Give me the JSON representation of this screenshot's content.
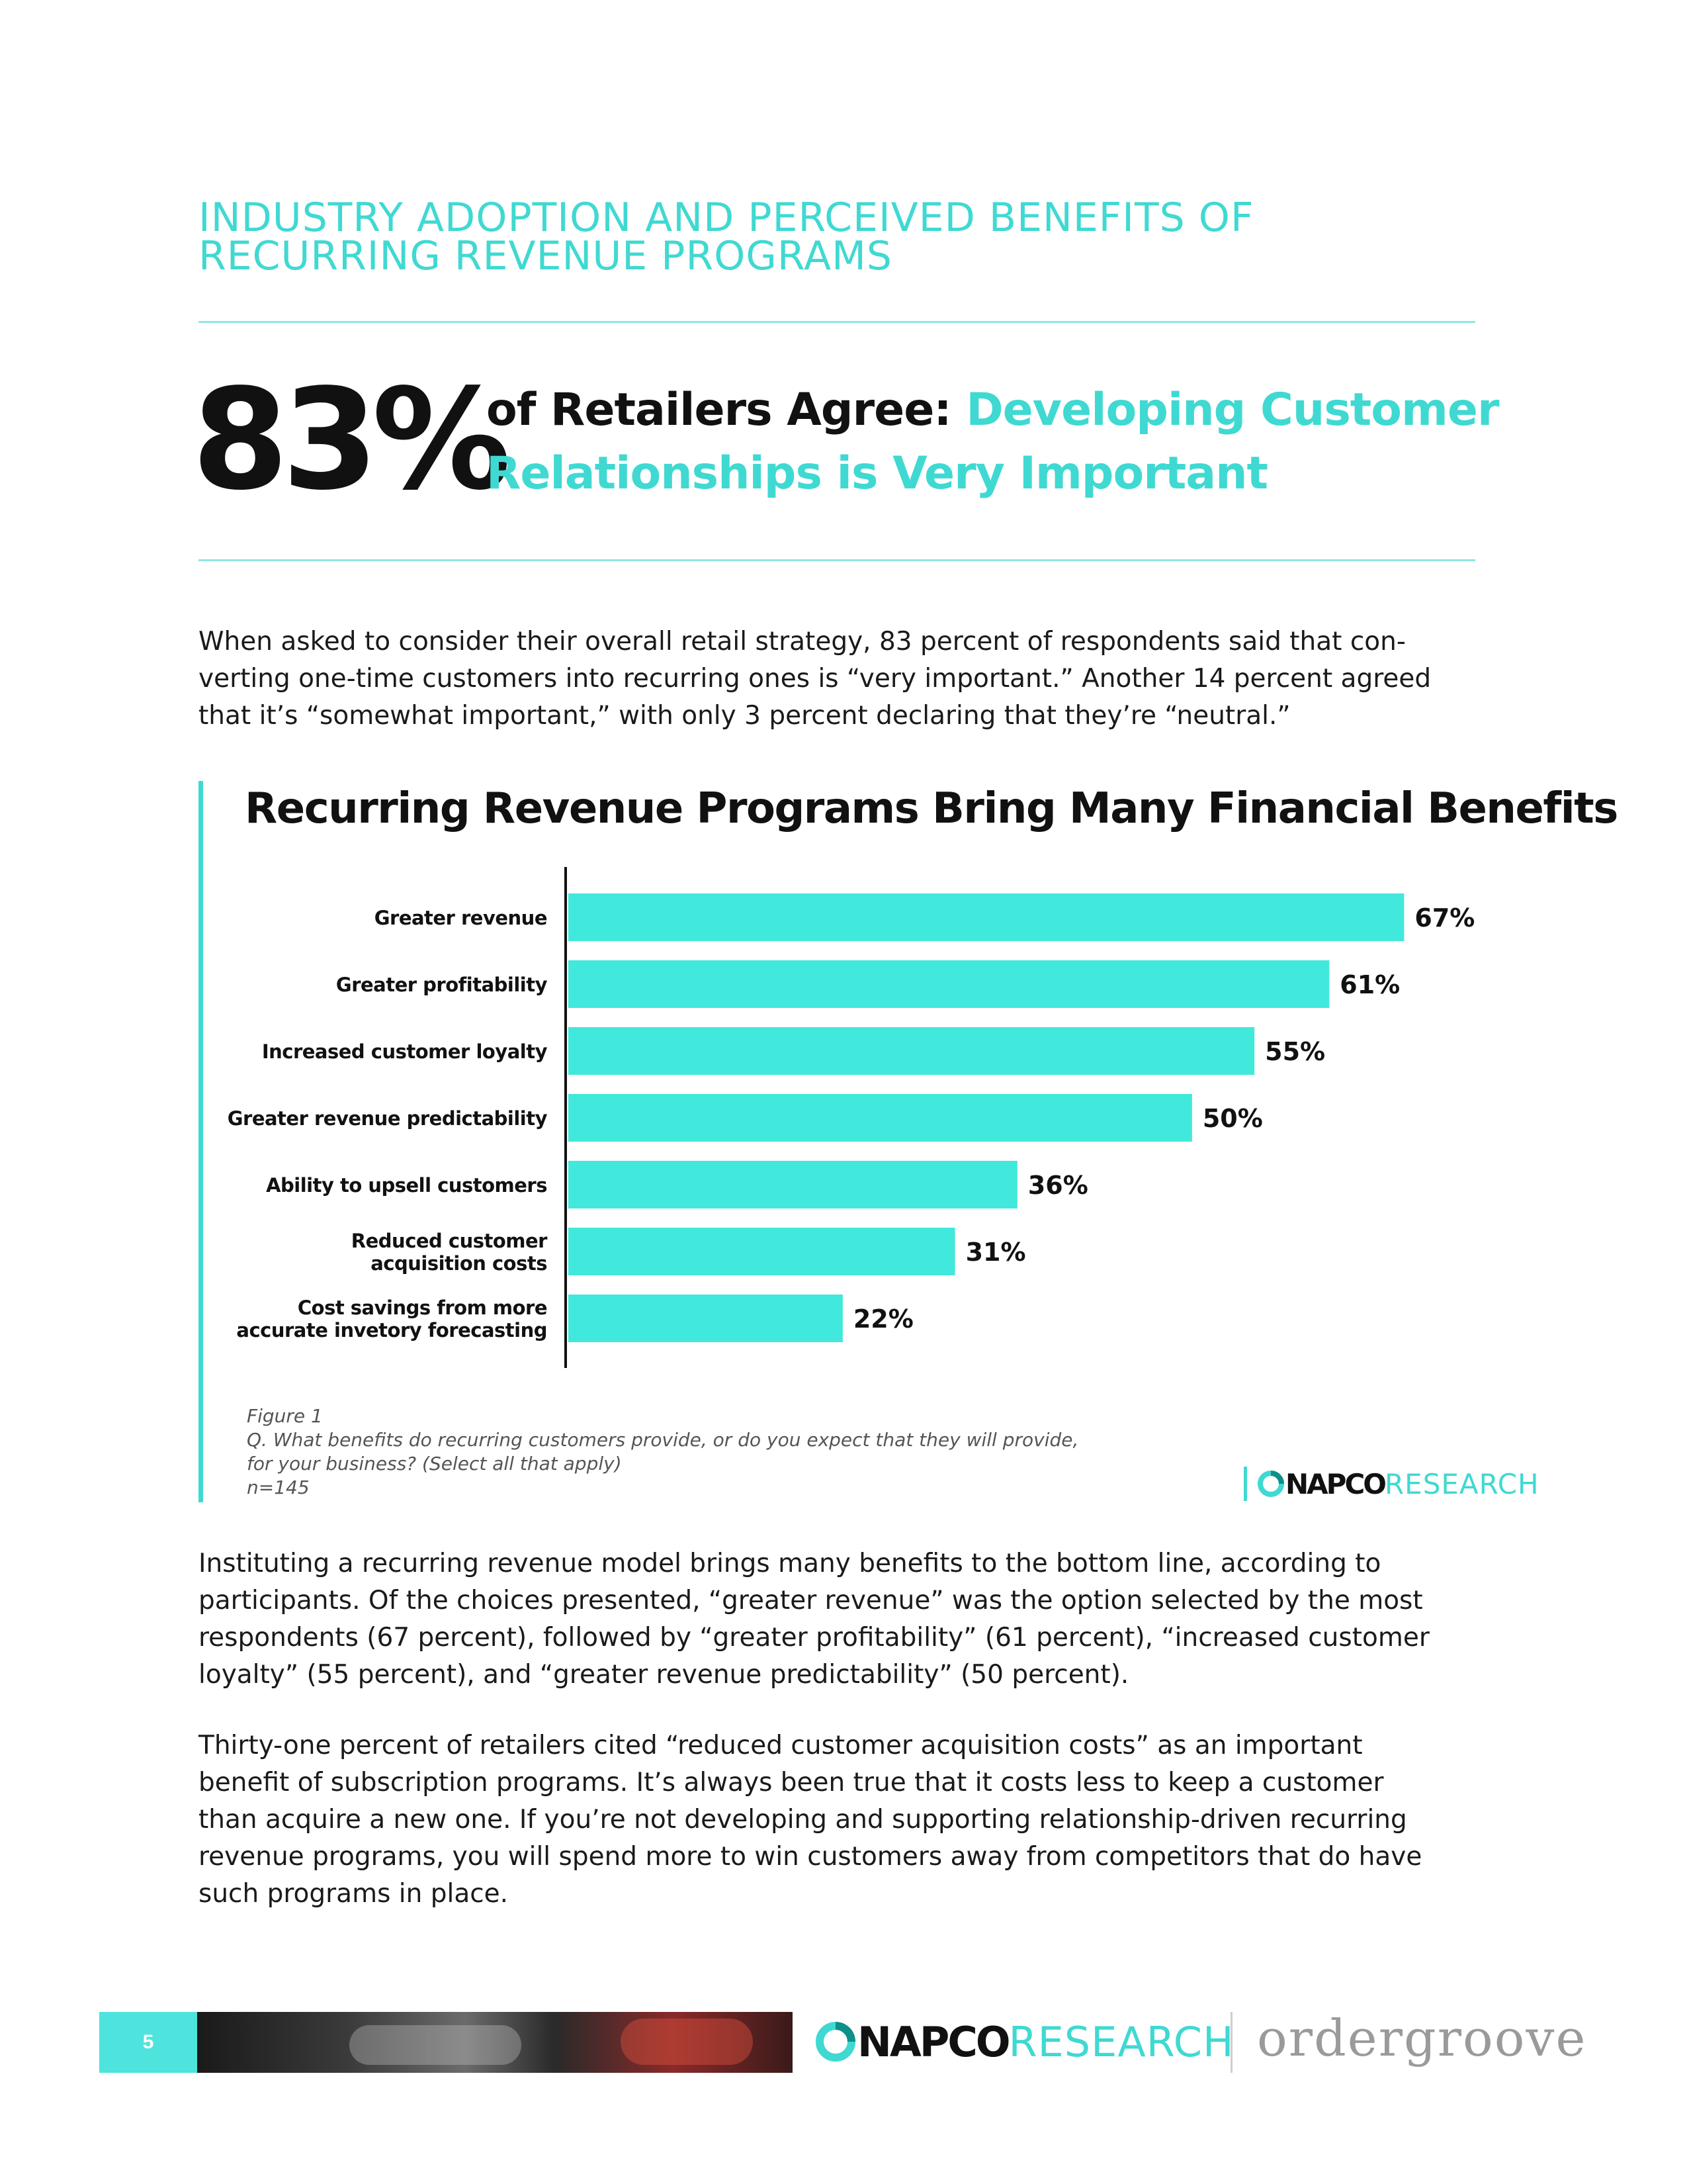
{
  "section_heading": {
    "line1": "INDUSTRY ADOPTION AND PERCEIVED BENEFITS OF",
    "line2": "RECURRING REVENUE PROGRAMS"
  },
  "headline": {
    "stat": "83%",
    "lead": "of Retailers Agree:",
    "accent_line1": "Developing Customer",
    "accent_line2": "Relationships is Very Important"
  },
  "intro_paragraph": {
    "line1": "When asked to consider their overall retail strategy, 83 percent of respondents said that con-",
    "line2": "verting one-time customers into recurring ones is “very important.” Another 14 percent agreed",
    "line3": "that it’s “somewhat important,” with only 3 percent declaring that they’re “neutral.”"
  },
  "chart_title": "Recurring Revenue Programs Bring Many Financial Benefits",
  "chart_data": {
    "type": "bar",
    "orientation": "horizontal",
    "title": "Recurring Revenue Programs Bring Many Financial Benefits",
    "categories": [
      [
        "Greater revenue"
      ],
      [
        "Greater profitability"
      ],
      [
        "Increased customer loyalty"
      ],
      [
        "Greater revenue predictability"
      ],
      [
        "Ability to upsell customers"
      ],
      [
        "Reduced customer",
        "acquisition costs"
      ],
      [
        "Cost savings from more",
        "accurate invetory forecasting"
      ]
    ],
    "values": [
      67,
      61,
      55,
      50,
      36,
      31,
      22
    ],
    "value_labels": [
      "67%",
      "61%",
      "55%",
      "50%",
      "36%",
      "31%",
      "22%"
    ],
    "xlim": [
      0,
      70
    ],
    "bar_color": "#41e8dc",
    "grid": false,
    "legend": "none"
  },
  "figure_note": {
    "figure": "Figure 1",
    "question_line1": "Q. What benefits do recurring customers provide, or do you expect that they will provide,",
    "question_line2": "for your business? (Select all that apply)",
    "n": "n=145"
  },
  "logo": {
    "napco": "NAPCO",
    "research": "RESEARCH"
  },
  "body_paragraph_1": {
    "line1": "Instituting a recurring revenue model brings many benefits to the bottom line, according to",
    "line2": "participants. Of the choices presented, “greater revenue” was the option selected by the most",
    "line3": "respondents (67 percent), followed by “greater profitability” (61 percent), “increased customer",
    "line4": "loyalty” (55 percent), and “greater revenue predictability” (50 percent)."
  },
  "body_paragraph_2": {
    "line1": "Thirty-one percent of retailers cited “reduced customer acquisition costs” as an important",
    "line2": "benefit of subscription programs. It’s always been true that it costs less to keep a customer",
    "line3": "than acquire a new one. If you’re not developing and supporting relationship-driven recurring",
    "line4": "revenue programs, you will spend more to win customers away from competitors that do have",
    "line5": "such programs in place."
  },
  "footer": {
    "page_number": "5",
    "napco": "NAPCO",
    "research": "RESEARCH",
    "partner": "ordergroove"
  },
  "colors": {
    "accent": "#3fd9d2",
    "bar": "#41e8dc",
    "text": "#1a1a1a"
  }
}
